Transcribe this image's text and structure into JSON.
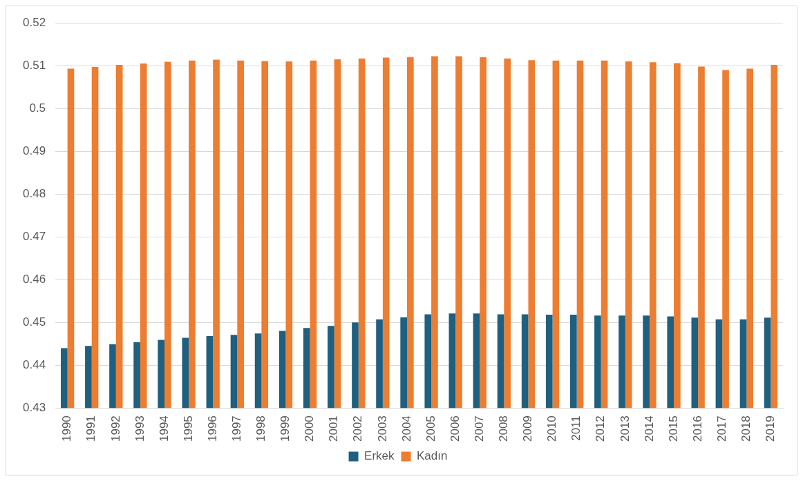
{
  "chart_data": {
    "type": "bar",
    "categories": [
      "1990",
      "1991",
      "1992",
      "1993",
      "1994",
      "1995",
      "1996",
      "1997",
      "1998",
      "1999",
      "2000",
      "2001",
      "2002",
      "2003",
      "2004",
      "2005",
      "2006",
      "2007",
      "2008",
      "2009",
      "2010",
      "2011",
      "2012",
      "2013",
      "2014",
      "2015",
      "2016",
      "2017",
      "2018",
      "2019"
    ],
    "series": [
      {
        "name": "Erkek",
        "color": "#1f5f7f",
        "values": [
          0.444,
          0.4445,
          0.4449,
          0.4454,
          0.4459,
          0.4464,
          0.4468,
          0.4471,
          0.4474,
          0.448,
          0.4487,
          0.4492,
          0.45,
          0.4507,
          0.4512,
          0.4519,
          0.4521,
          0.4521,
          0.4519,
          0.4519,
          0.4518,
          0.4518,
          0.4516,
          0.4516,
          0.4516,
          0.4514,
          0.4511,
          0.4507,
          0.4507,
          0.4511
        ]
      },
      {
        "name": "Kadın",
        "color": "#ed7d31",
        "values": [
          0.5093,
          0.5097,
          0.5102,
          0.5105,
          0.5109,
          0.5112,
          0.5114,
          0.5112,
          0.5111,
          0.511,
          0.5112,
          0.5115,
          0.5117,
          0.5119,
          0.512,
          0.5122,
          0.5122,
          0.512,
          0.5117,
          0.5113,
          0.5112,
          0.5112,
          0.5112,
          0.511,
          0.5108,
          0.5106,
          0.5098,
          0.509,
          0.5093,
          0.5102
        ]
      }
    ],
    "ylim": [
      0.43,
      0.52
    ],
    "yticks": [
      0.43,
      0.44,
      0.45,
      0.46,
      0.47,
      0.48,
      0.49,
      0.5,
      0.51,
      0.52
    ],
    "grid": "y",
    "legend": "bottom"
  }
}
